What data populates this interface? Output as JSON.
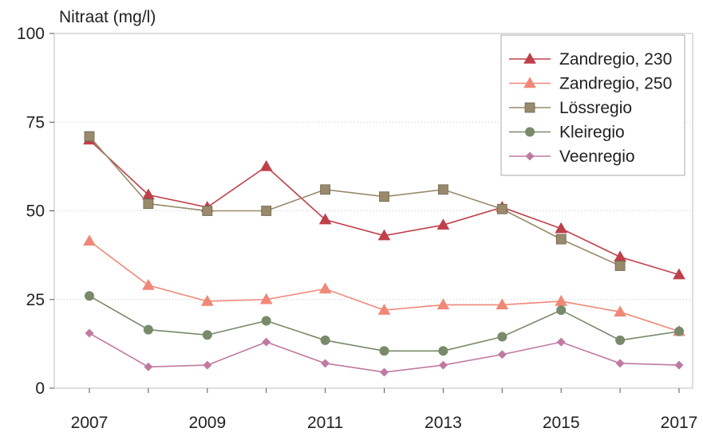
{
  "chart_data": {
    "type": "line",
    "ylabel": "Nitraat (mg/l)",
    "xlabel": "",
    "x": [
      2007,
      2008,
      2009,
      2010,
      2011,
      2012,
      2013,
      2014,
      2015,
      2016,
      2017
    ],
    "xticks": [
      "2007",
      "2009",
      "2011",
      "2013",
      "2015",
      "2017"
    ],
    "yticks": [
      "0",
      "25",
      "50",
      "75",
      "100"
    ],
    "ylim": [
      0,
      100
    ],
    "xlim": [
      2007,
      2017
    ],
    "grid": "horizontal dotted",
    "legend_position": "top-right",
    "series": [
      {
        "name": "Zandregio, 230",
        "marker": "triangle",
        "color": "#c0404a",
        "values": [
          70,
          54.5,
          51,
          62.5,
          47.5,
          43,
          46,
          51,
          45,
          37,
          32
        ]
      },
      {
        "name": "Zandregio, 250",
        "marker": "triangle",
        "color": "#f08878",
        "values": [
          41.5,
          29,
          24.5,
          25,
          28,
          22,
          23.5,
          23.5,
          24.5,
          21.5,
          16
        ]
      },
      {
        "name": "Lössregio",
        "marker": "square",
        "color": "#988a6a",
        "values": [
          71,
          52,
          50,
          50,
          56,
          54,
          56,
          50.5,
          42,
          34.5,
          null
        ]
      },
      {
        "name": "Kleiregio",
        "marker": "circle",
        "color": "#788a6a",
        "values": [
          26,
          16.5,
          15,
          19,
          13.5,
          10.5,
          10.5,
          14.5,
          22,
          13.5,
          16
        ]
      },
      {
        "name": "Veenregio",
        "marker": "diamond",
        "color": "#c07aa0",
        "values": [
          15.5,
          6,
          6.5,
          13,
          7,
          4.5,
          6.5,
          9.5,
          13,
          7,
          6.5
        ]
      }
    ]
  }
}
